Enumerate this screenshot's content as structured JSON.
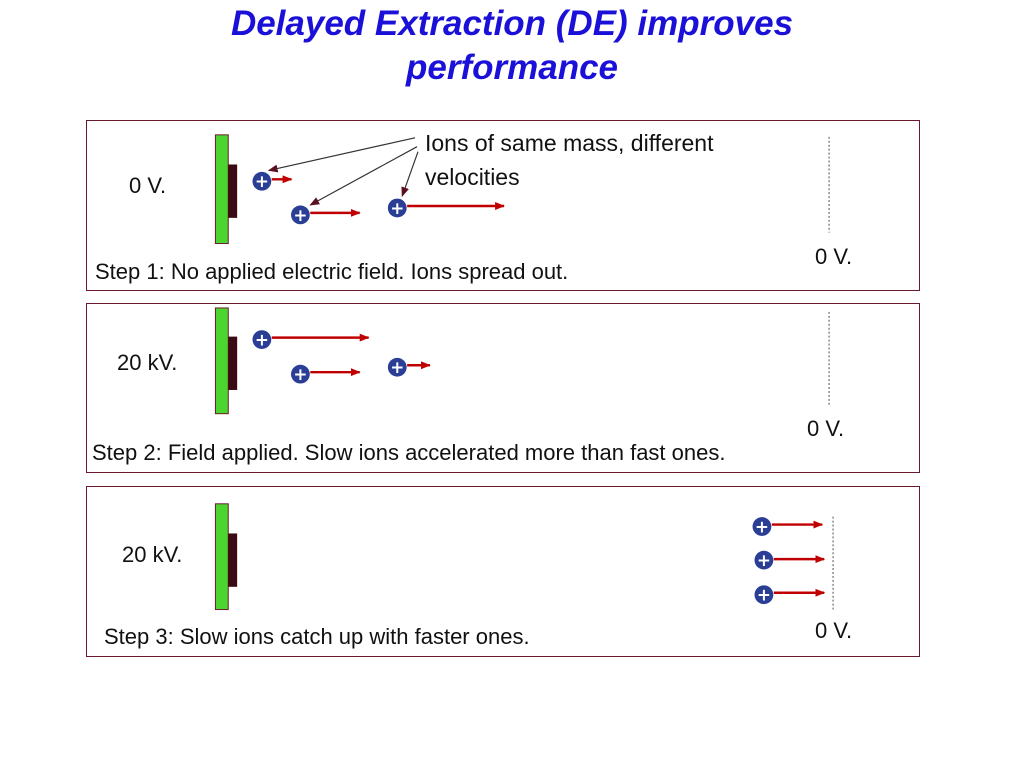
{
  "title": {
    "line1": "Delayed Extraction (DE) improves",
    "line2": "performance"
  },
  "colors": {
    "title": "#1a10d8",
    "panel_border": "#6b1a2e",
    "plate": "#4cd430",
    "electrode": "#3a0b12",
    "ion": "#2a3e95",
    "arrow": "#c00000"
  },
  "ion_symbol": "+",
  "panels": [
    {
      "voltage_left": "0 V.",
      "voltage_right": "0 V.",
      "caption": "Step 1: No applied electric field. Ions spread out.",
      "annotation": "Ions of same mass, different velocities"
    },
    {
      "voltage_left": "20 kV.",
      "voltage_right": "0 V.",
      "caption": "Step 2: Field applied. Slow ions accelerated more than fast ones."
    },
    {
      "voltage_left": "20 kV.",
      "voltage_right": "0 V.",
      "caption": "Step 3: Slow ions catch up with faster ones."
    }
  ]
}
